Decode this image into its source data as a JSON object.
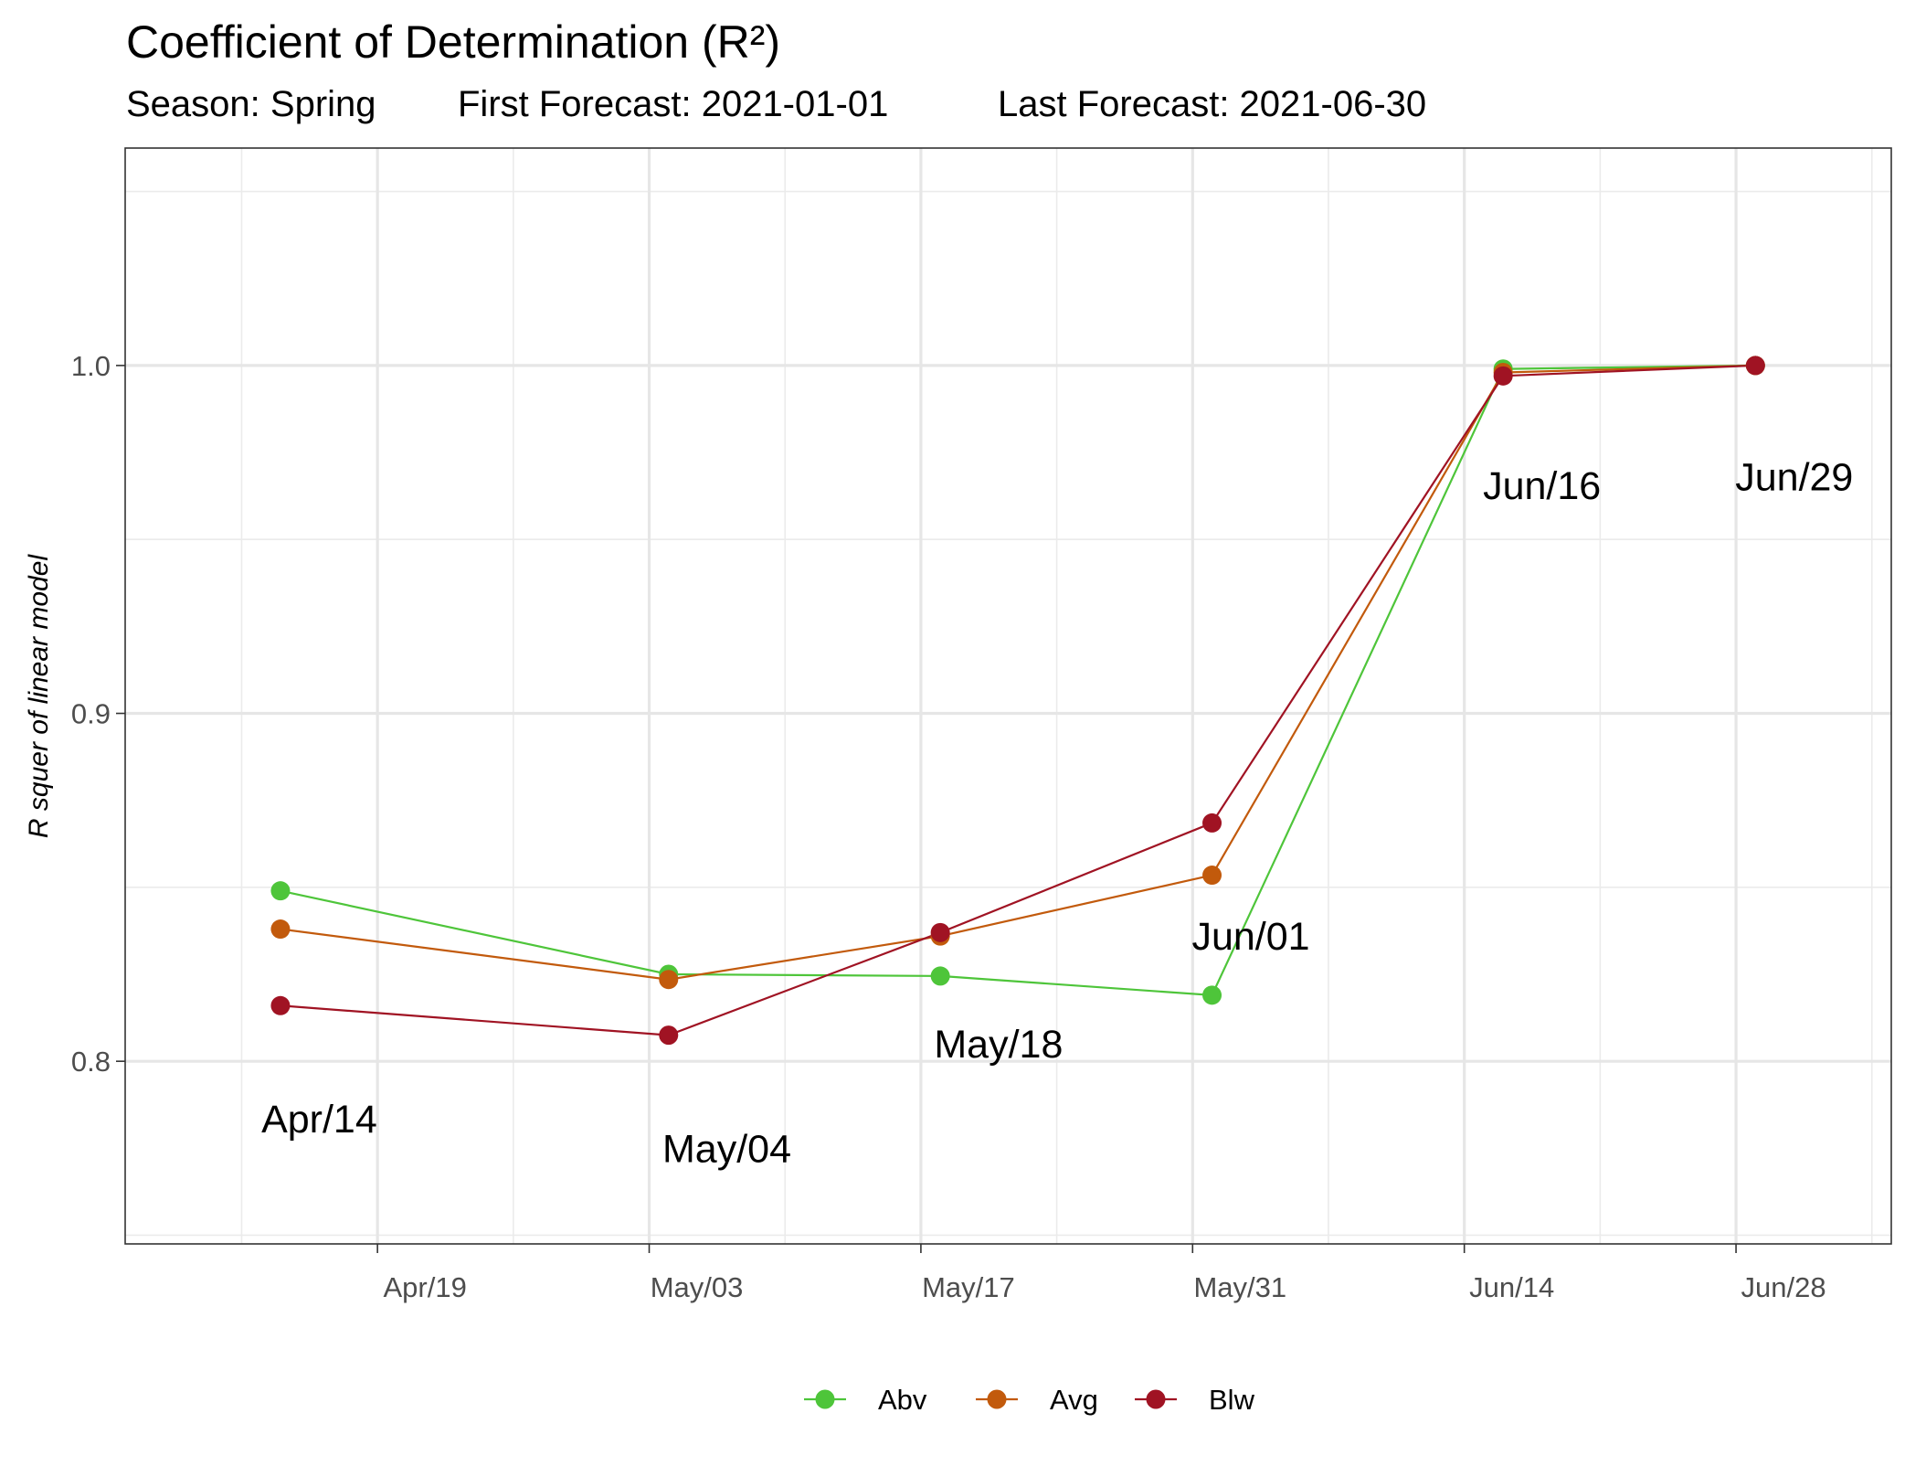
{
  "chart_data": {
    "type": "line",
    "title": "Coefficient of Determination (R²)",
    "subtitle": {
      "season": "Season: Spring",
      "first_forecast": "First Forecast: 2021-01-01",
      "last_forecast": "Last Forecast: 2021-06-30"
    },
    "xlabel": "",
    "ylabel": "R squer of linear model",
    "xlim": [
      "2021-04-06",
      "2021-07-06"
    ],
    "ylim": [
      0.7475,
      1.0625
    ],
    "x_ticks": [
      {
        "date": "2021-04-19",
        "label": "Apr/19"
      },
      {
        "date": "2021-05-03",
        "label": "May/03"
      },
      {
        "date": "2021-05-17",
        "label": "May/17"
      },
      {
        "date": "2021-05-31",
        "label": "May/31"
      },
      {
        "date": "2021-06-14",
        "label": "Jun/14"
      },
      {
        "date": "2021-06-28",
        "label": "Jun/28"
      }
    ],
    "x_minor_ticks": [
      "2021-04-12",
      "2021-04-26",
      "2021-05-10",
      "2021-05-24",
      "2021-06-07",
      "2021-06-21",
      "2021-07-05"
    ],
    "y_ticks": [
      0.8,
      0.9,
      1.0
    ],
    "y_minor_ticks": [
      0.75,
      0.85,
      0.95,
      1.05
    ],
    "grid": true,
    "legend_position": "bottom",
    "x": [
      "2021-04-14",
      "2021-05-04",
      "2021-05-18",
      "2021-06-01",
      "2021-06-16",
      "2021-06-29"
    ],
    "series": [
      {
        "name": "Abv",
        "color": "#4ec53a",
        "values": [
          0.849,
          0.825,
          0.8245,
          0.819,
          0.999,
          1.0
        ]
      },
      {
        "name": "Avg",
        "color": "#c25a0c",
        "values": [
          0.838,
          0.8235,
          0.836,
          0.8535,
          0.998,
          1.0
        ]
      },
      {
        "name": "Blw",
        "color": "#a01323",
        "values": [
          0.816,
          0.8075,
          0.837,
          0.8685,
          0.997,
          1.0
        ]
      }
    ],
    "annotations": [
      {
        "text": "Apr/14",
        "x": "2021-04-16",
        "y": 0.7835
      },
      {
        "text": "May/04",
        "x": "2021-05-07",
        "y": 0.775
      },
      {
        "text": "May/18",
        "x": "2021-05-21",
        "y": 0.805
      },
      {
        "text": "Jun/01",
        "x": "2021-06-03",
        "y": 0.836
      },
      {
        "text": "Jun/16",
        "x": "2021-06-18",
        "y": 0.9655
      },
      {
        "text": "Jun/29",
        "x": "2021-07-01",
        "y": 0.968
      }
    ]
  }
}
